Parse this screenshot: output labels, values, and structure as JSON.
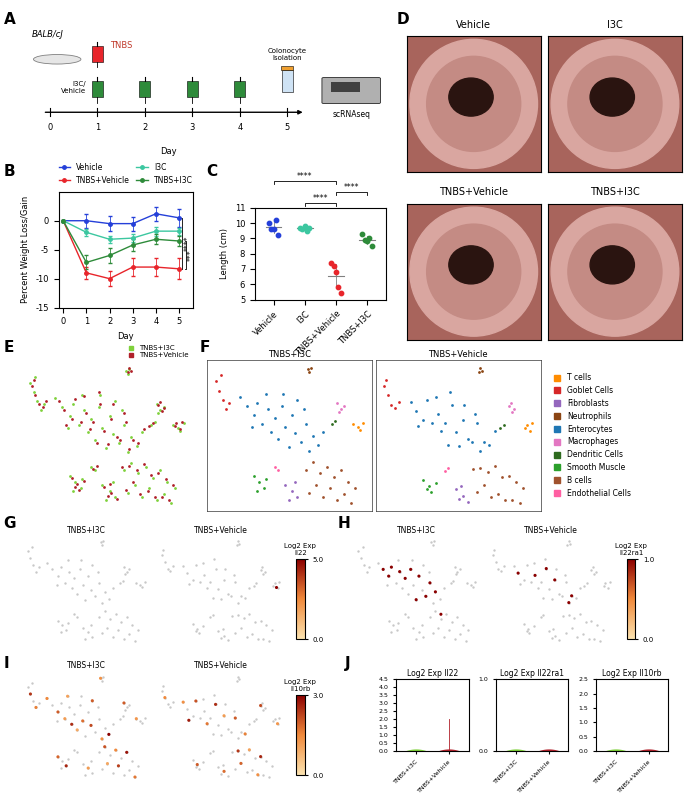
{
  "panel_letters": [
    "A",
    "B",
    "C",
    "D",
    "E",
    "F",
    "G",
    "H",
    "I",
    "J"
  ],
  "diagram": {
    "panel_A": {
      "mouse_label": "BALB/cJ",
      "tnbs_label": "TNBS",
      "treatment_label": "I3C/\nVehicle",
      "isolation_label": "Colonocyte\nIsolation",
      "sequencing_label": "scRNAseq",
      "timeline_label": "Day",
      "days": [
        0,
        1,
        2,
        3,
        4,
        5
      ],
      "tnbs_days": [
        1
      ],
      "treatment_days": [
        1,
        2,
        3,
        4
      ],
      "isolation_day": 5
    },
    "panel_D": {
      "titles": [
        "Vehicle",
        "I3C",
        "TNBS+Vehicle",
        "TNBS+I3C"
      ]
    }
  },
  "chart_data": [
    {
      "type": "line",
      "xlabel": "Day",
      "ylabel": "Percent Weight Loss/Gain",
      "x": [
        0,
        1,
        2,
        3,
        4,
        5
      ],
      "xlim": [
        -0.2,
        5.6
      ],
      "xticks": [
        0,
        1,
        2,
        3,
        4,
        5
      ],
      "ylim": [
        -15,
        5
      ],
      "yticks": [
        -15,
        -10,
        -5,
        0
      ],
      "legend": "top",
      "series": [
        {
          "name": "Vehicle",
          "color": "#2540d9",
          "values": [
            0,
            0,
            -0.5,
            -0.5,
            1.2,
            0.5
          ],
          "errors": [
            0,
            1.2,
            1.3,
            1.2,
            1.2,
            1.5
          ]
        },
        {
          "name": "TNBS+Vehicle",
          "color": "#e8252b",
          "values": [
            0,
            -9,
            -10,
            -8,
            -8,
            -8.3
          ],
          "errors": [
            0,
            1.0,
            1.3,
            1.6,
            1.6,
            1.8
          ]
        },
        {
          "name": "I3C",
          "color": "#3cc7a0",
          "values": [
            0,
            -2,
            -3.2,
            -3,
            -1.8,
            -1.8
          ],
          "errors": [
            0,
            0.6,
            0.6,
            0.7,
            0.8,
            0.6
          ]
        },
        {
          "name": "TNBS+I3C",
          "color": "#2e8b3a",
          "values": [
            0,
            -7.2,
            -6,
            -4.2,
            -3.2,
            -3.5
          ],
          "errors": [
            0,
            1.2,
            1.3,
            1.0,
            0.9,
            0.8
          ]
        }
      ],
      "significance": [
        {
          "text": "****",
          "between": [
            "Vehicle",
            "TNBS+Vehicle"
          ]
        },
        {
          "text": "***",
          "between": [
            "TNBS+I3C",
            "TNBS+Vehicle"
          ]
        }
      ]
    },
    {
      "type": "scatter",
      "ylabel": "Length (cm)",
      "categories": [
        "Vehicle",
        "I3C",
        "TNBS+Vehicle",
        "TNBS+I3C"
      ],
      "colors": [
        "#2540d9",
        "#3cc7a0",
        "#e8252b",
        "#2e8b3a"
      ],
      "values": [
        [
          10.0,
          9.6,
          9.6,
          10.2,
          9.2
        ],
        [
          9.7,
          9.6,
          9.8,
          9.5,
          9.7
        ],
        [
          7.4,
          7.2,
          6.8,
          5.8,
          5.4
        ],
        [
          9.3,
          8.9,
          8.8,
          9.0,
          8.5
        ]
      ],
      "ylim": [
        5,
        11
      ],
      "yticks": [
        5,
        6,
        7,
        8,
        9,
        10,
        11
      ],
      "significance": [
        {
          "text": "****",
          "between": [
            "I3C",
            "TNBS+Vehicle"
          ]
        },
        {
          "text": "****",
          "between": [
            "TNBS+Vehicle",
            "TNBS+I3C"
          ]
        },
        {
          "text": "****",
          "between": [
            "Vehicle",
            "TNBS+Vehicle"
          ]
        }
      ]
    },
    {
      "type": "violin",
      "title": "Log2 Exp Il22",
      "categories": [
        "TNBS+I3C",
        "TNBS+Vehicle"
      ],
      "colors": [
        "#7fd13b",
        "#b0202a"
      ],
      "ylim": [
        0.0,
        4.5
      ],
      "yticks": [
        0.0,
        0.5,
        1.0,
        1.5,
        2.0,
        2.5,
        3.0,
        3.5,
        4.0,
        4.5
      ],
      "max": [
        0.0,
        2.0
      ]
    },
    {
      "type": "violin",
      "title": "Log2 Exp Il22ra1",
      "categories": [
        "TNBS+I3C",
        "TNBS+Vehicle"
      ],
      "colors": [
        "#7fd13b",
        "#b0202a"
      ],
      "ylim": [
        0.0,
        1.0
      ],
      "yticks": [
        0.0,
        1.0
      ]
    },
    {
      "type": "violin",
      "title": "Log2 Exp Il10rb",
      "categories": [
        "TNBS+I3C",
        "TNBS+Vehicle"
      ],
      "colors": [
        "#7fd13b",
        "#b0202a"
      ],
      "ylim": [
        0.0,
        2.5
      ],
      "yticks": [
        0.0,
        0.5,
        1.0,
        1.5,
        2.0,
        2.5
      ]
    }
  ],
  "tsne": {
    "conditions": [
      "TNBS+I3C",
      "TNBS+Vehicle"
    ],
    "condition_colors": [
      "#7fd13b",
      "#b0202a"
    ],
    "clusters": [
      {
        "name": "T cells",
        "color": "#ff8c00",
        "x": [
          [
            85,
            88,
            91,
            89
          ],
          [
            86,
            89,
            90,
            87
          ]
        ],
        "y": [
          [
            60,
            58,
            61,
            56
          ],
          [
            59,
            57,
            62,
            61
          ]
        ]
      },
      {
        "name": "Goblet Cells",
        "color": "#d62728",
        "x": [
          [
            6,
            8,
            10,
            12,
            9,
            14
          ],
          [
            7,
            9,
            11,
            13,
            8,
            15
          ]
        ],
        "y": [
          [
            88,
            82,
            76,
            70,
            92,
            74
          ],
          [
            86,
            80,
            74,
            72,
            90,
            76
          ]
        ]
      },
      {
        "name": "Fibroblasts",
        "color": "#9467bd",
        "x": [
          [
            46,
            50,
            53,
            48,
            52
          ],
          [
            47,
            51,
            54,
            49,
            50
          ]
        ],
        "y": [
          [
            20,
            16,
            12,
            10,
            22
          ],
          [
            19,
            15,
            11,
            13,
            21
          ]
        ]
      },
      {
        "name": "Neutrophils",
        "color": "#8b4513",
        "x": [
          [
            59,
            61,
            60
          ],
          [
            60,
            62,
            61
          ]
        ],
        "y": [
          [
            96,
            97,
            94
          ],
          [
            95,
            96,
            98
          ]
        ]
      },
      {
        "name": "Enterocytes",
        "color": "#1f77b4",
        "x": [
          [
            20,
            24,
            28,
            30,
            33,
            36,
            38,
            40,
            42,
            44,
            46,
            48,
            50,
            52,
            55,
            58,
            60,
            62,
            65,
            68,
            35,
            45,
            53,
            27,
            57
          ],
          [
            22,
            25,
            29,
            31,
            34,
            37,
            39,
            41,
            43,
            45,
            47,
            49,
            51,
            54,
            56,
            59,
            61,
            63,
            66,
            69,
            36,
            44,
            52,
            26,
            58
          ]
        ],
        "y": [
          [
            78,
            72,
            66,
            74,
            60,
            70,
            55,
            64,
            50,
            72,
            58,
            45,
            66,
            54,
            48,
            60,
            42,
            52,
            46,
            55,
            80,
            80,
            76,
            58,
            70
          ],
          [
            76,
            70,
            64,
            77,
            62,
            68,
            57,
            62,
            48,
            74,
            56,
            47,
            64,
            52,
            50,
            62,
            44,
            50,
            48,
            57,
            79,
            82,
            74,
            60,
            68
          ]
        ]
      },
      {
        "name": "Macrophages",
        "color": "#e377c2",
        "x": [
          [
            76,
            78,
            80,
            77
          ],
          [
            77,
            79,
            78,
            80
          ]
        ],
        "y": [
          [
            74,
            70,
            72,
            68
          ],
          [
            73,
            69,
            75,
            71
          ]
        ]
      },
      {
        "name": "Dendritic Cells",
        "color": "#2e6b1f",
        "x": [
          [
            73,
            75
          ],
          [
            74,
            72
          ]
        ],
        "y": [
          [
            60,
            62
          ],
          [
            61,
            59
          ]
        ]
      },
      {
        "name": "Smooth Muscle",
        "color": "#2ca02c",
        "x": [
          [
            28,
            31,
            34,
            30,
            35
          ],
          [
            29,
            32,
            33,
            31,
            36
          ]
        ],
        "y": [
          [
            26,
            22,
            18,
            16,
            24
          ],
          [
            25,
            21,
            17,
            19,
            23
          ]
        ]
      },
      {
        "name": "B cells",
        "color": "#a0522d",
        "x": [
          [
            58,
            62,
            66,
            70,
            74,
            78,
            82,
            86,
            60,
            64,
            68,
            72,
            76,
            80,
            84
          ],
          [
            57,
            61,
            65,
            69,
            73,
            77,
            81,
            85,
            59,
            63,
            67,
            71,
            75,
            79,
            83
          ]
        ],
        "y": [
          [
            30,
            35,
            28,
            32,
            25,
            30,
            22,
            18,
            15,
            20,
            12,
            18,
            10,
            14,
            8
          ],
          [
            32,
            33,
            30,
            34,
            27,
            28,
            24,
            20,
            17,
            22,
            14,
            16,
            12,
            12,
            10
          ]
        ]
      },
      {
        "name": "Endothelial Cells",
        "color": "#ff5fa2",
        "x": [
          [
            40,
            42
          ],
          [
            41,
            43
          ]
        ],
        "y": [
          [
            32,
            30
          ],
          [
            31,
            33
          ]
        ]
      }
    ],
    "expression": [
      {
        "title": "Log2 Exp\nIl22",
        "cbar_range": [
          0.0,
          5.0
        ],
        "cbar_ticks": [
          0.0,
          5.0
        ],
        "cells": [
          [],
          [
            [
              88,
              58,
              5.0
            ]
          ]
        ]
      },
      {
        "title": "Log2 Exp\nIl22ra1",
        "cbar_range": [
          0.0,
          1.0
        ],
        "cbar_ticks": [
          0.0,
          1.0
        ],
        "cells": [
          [
            [
              24,
              72,
              1.0
            ],
            [
              30,
              74,
              1.0
            ],
            [
              36,
              70,
              1.0
            ],
            [
              40,
              64,
              1.0
            ],
            [
              44,
              72,
              1.0
            ],
            [
              48,
              45,
              1.0
            ],
            [
              50,
              66,
              1.0
            ],
            [
              55,
              48,
              1.0
            ],
            [
              58,
              60,
              1.0
            ],
            [
              62,
              52,
              1.0
            ],
            [
              28,
              66,
              1.0
            ],
            [
              66,
              32,
              1.0
            ]
          ],
          [
            [
              25,
              70,
              1.0
            ],
            [
              37,
              68,
              1.0
            ],
            [
              45,
              74,
              1.0
            ],
            [
              51,
              64,
              1.0
            ],
            [
              61,
              44,
              1.0
            ],
            [
              63,
              50,
              1.0
            ]
          ]
        ]
      },
      {
        "title": "Log2 Exp\nIl10rb",
        "cbar_range": [
          0.0,
          3.0
        ],
        "cbar_ticks": [
          0.0,
          3.0
        ],
        "cells": [
          [
            [
              20,
              78,
              1.5
            ],
            [
              28,
              66,
              2.0
            ],
            [
              33,
              60,
              1.2
            ],
            [
              38,
              55,
              2.5
            ],
            [
              42,
              50,
              1.0
            ],
            [
              46,
              58,
              1.8
            ],
            [
              52,
              54,
              2.2
            ],
            [
              60,
              42,
              1.4
            ],
            [
              65,
              46,
              3.0
            ],
            [
              35,
              80,
              1.1
            ],
            [
              53,
              76,
              2.0
            ],
            [
              8,
              82,
              2.4
            ],
            [
              12,
              70,
              1.6
            ],
            [
              76,
              74,
              2.0
            ],
            [
              85,
              60,
              1.3
            ],
            [
              28,
              26,
              1.9
            ],
            [
              34,
              18,
              2.6
            ],
            [
              50,
              16,
              1.2
            ],
            [
              62,
              35,
              2.1
            ],
            [
              70,
              32,
              1.5
            ],
            [
              78,
              30,
              2.8
            ],
            [
              64,
              20,
              1.0
            ],
            [
              72,
              18,
              2.3
            ],
            [
              84,
              8,
              1.7
            ],
            [
              59,
              96,
              1.4
            ]
          ],
          [
            [
              22,
              76,
              1.4
            ],
            [
              31,
              77,
              2.1
            ],
            [
              39,
              57,
              1.7
            ],
            [
              45,
              74,
              2.5
            ],
            [
              51,
              64,
              1.2
            ],
            [
              59,
              62,
              2.0
            ],
            [
              66,
              48,
              1.6
            ],
            [
              26,
              60,
              2.7
            ],
            [
              9,
              80,
              1.5
            ],
            [
              77,
              73,
              2.2
            ],
            [
              89,
              57,
              1.3
            ],
            [
              32,
              21,
              2.0
            ],
            [
              51,
              15,
              1.8
            ],
            [
              61,
              33,
              2.4
            ],
            [
              69,
              34,
              1.1
            ],
            [
              77,
              28,
              2.6
            ],
            [
              63,
              22,
              1.9
            ],
            [
              75,
              12,
              1.4
            ]
          ]
        ]
      }
    ]
  }
}
